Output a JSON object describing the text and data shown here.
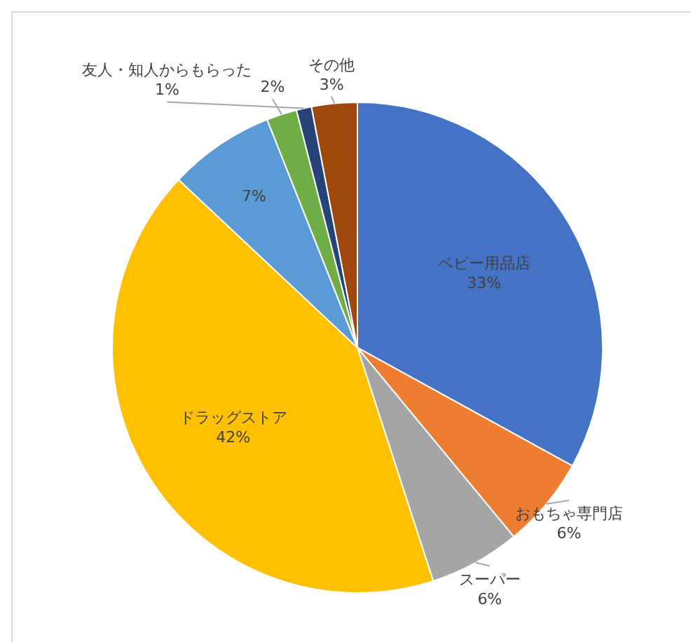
{
  "chart_data": {
    "type": "pie",
    "categories": [
      "ベビー用品店",
      "おもちゃ専門店",
      "スーパー",
      "ドラッグストア",
      null,
      null,
      "友人・知人からもらった",
      "その他"
    ],
    "values": [
      33,
      6,
      6,
      42,
      7,
      2,
      1,
      3
    ],
    "colors": [
      "#4472c4",
      "#ed7d31",
      "#a5a5a5",
      "#ffc000",
      "#5b9bd5",
      "#70ad47",
      "#264478",
      "#9e480e"
    ],
    "value_labels": [
      "33%",
      "6%",
      "6%",
      "42%",
      "7%",
      "2%",
      "1%",
      "3%"
    ]
  }
}
